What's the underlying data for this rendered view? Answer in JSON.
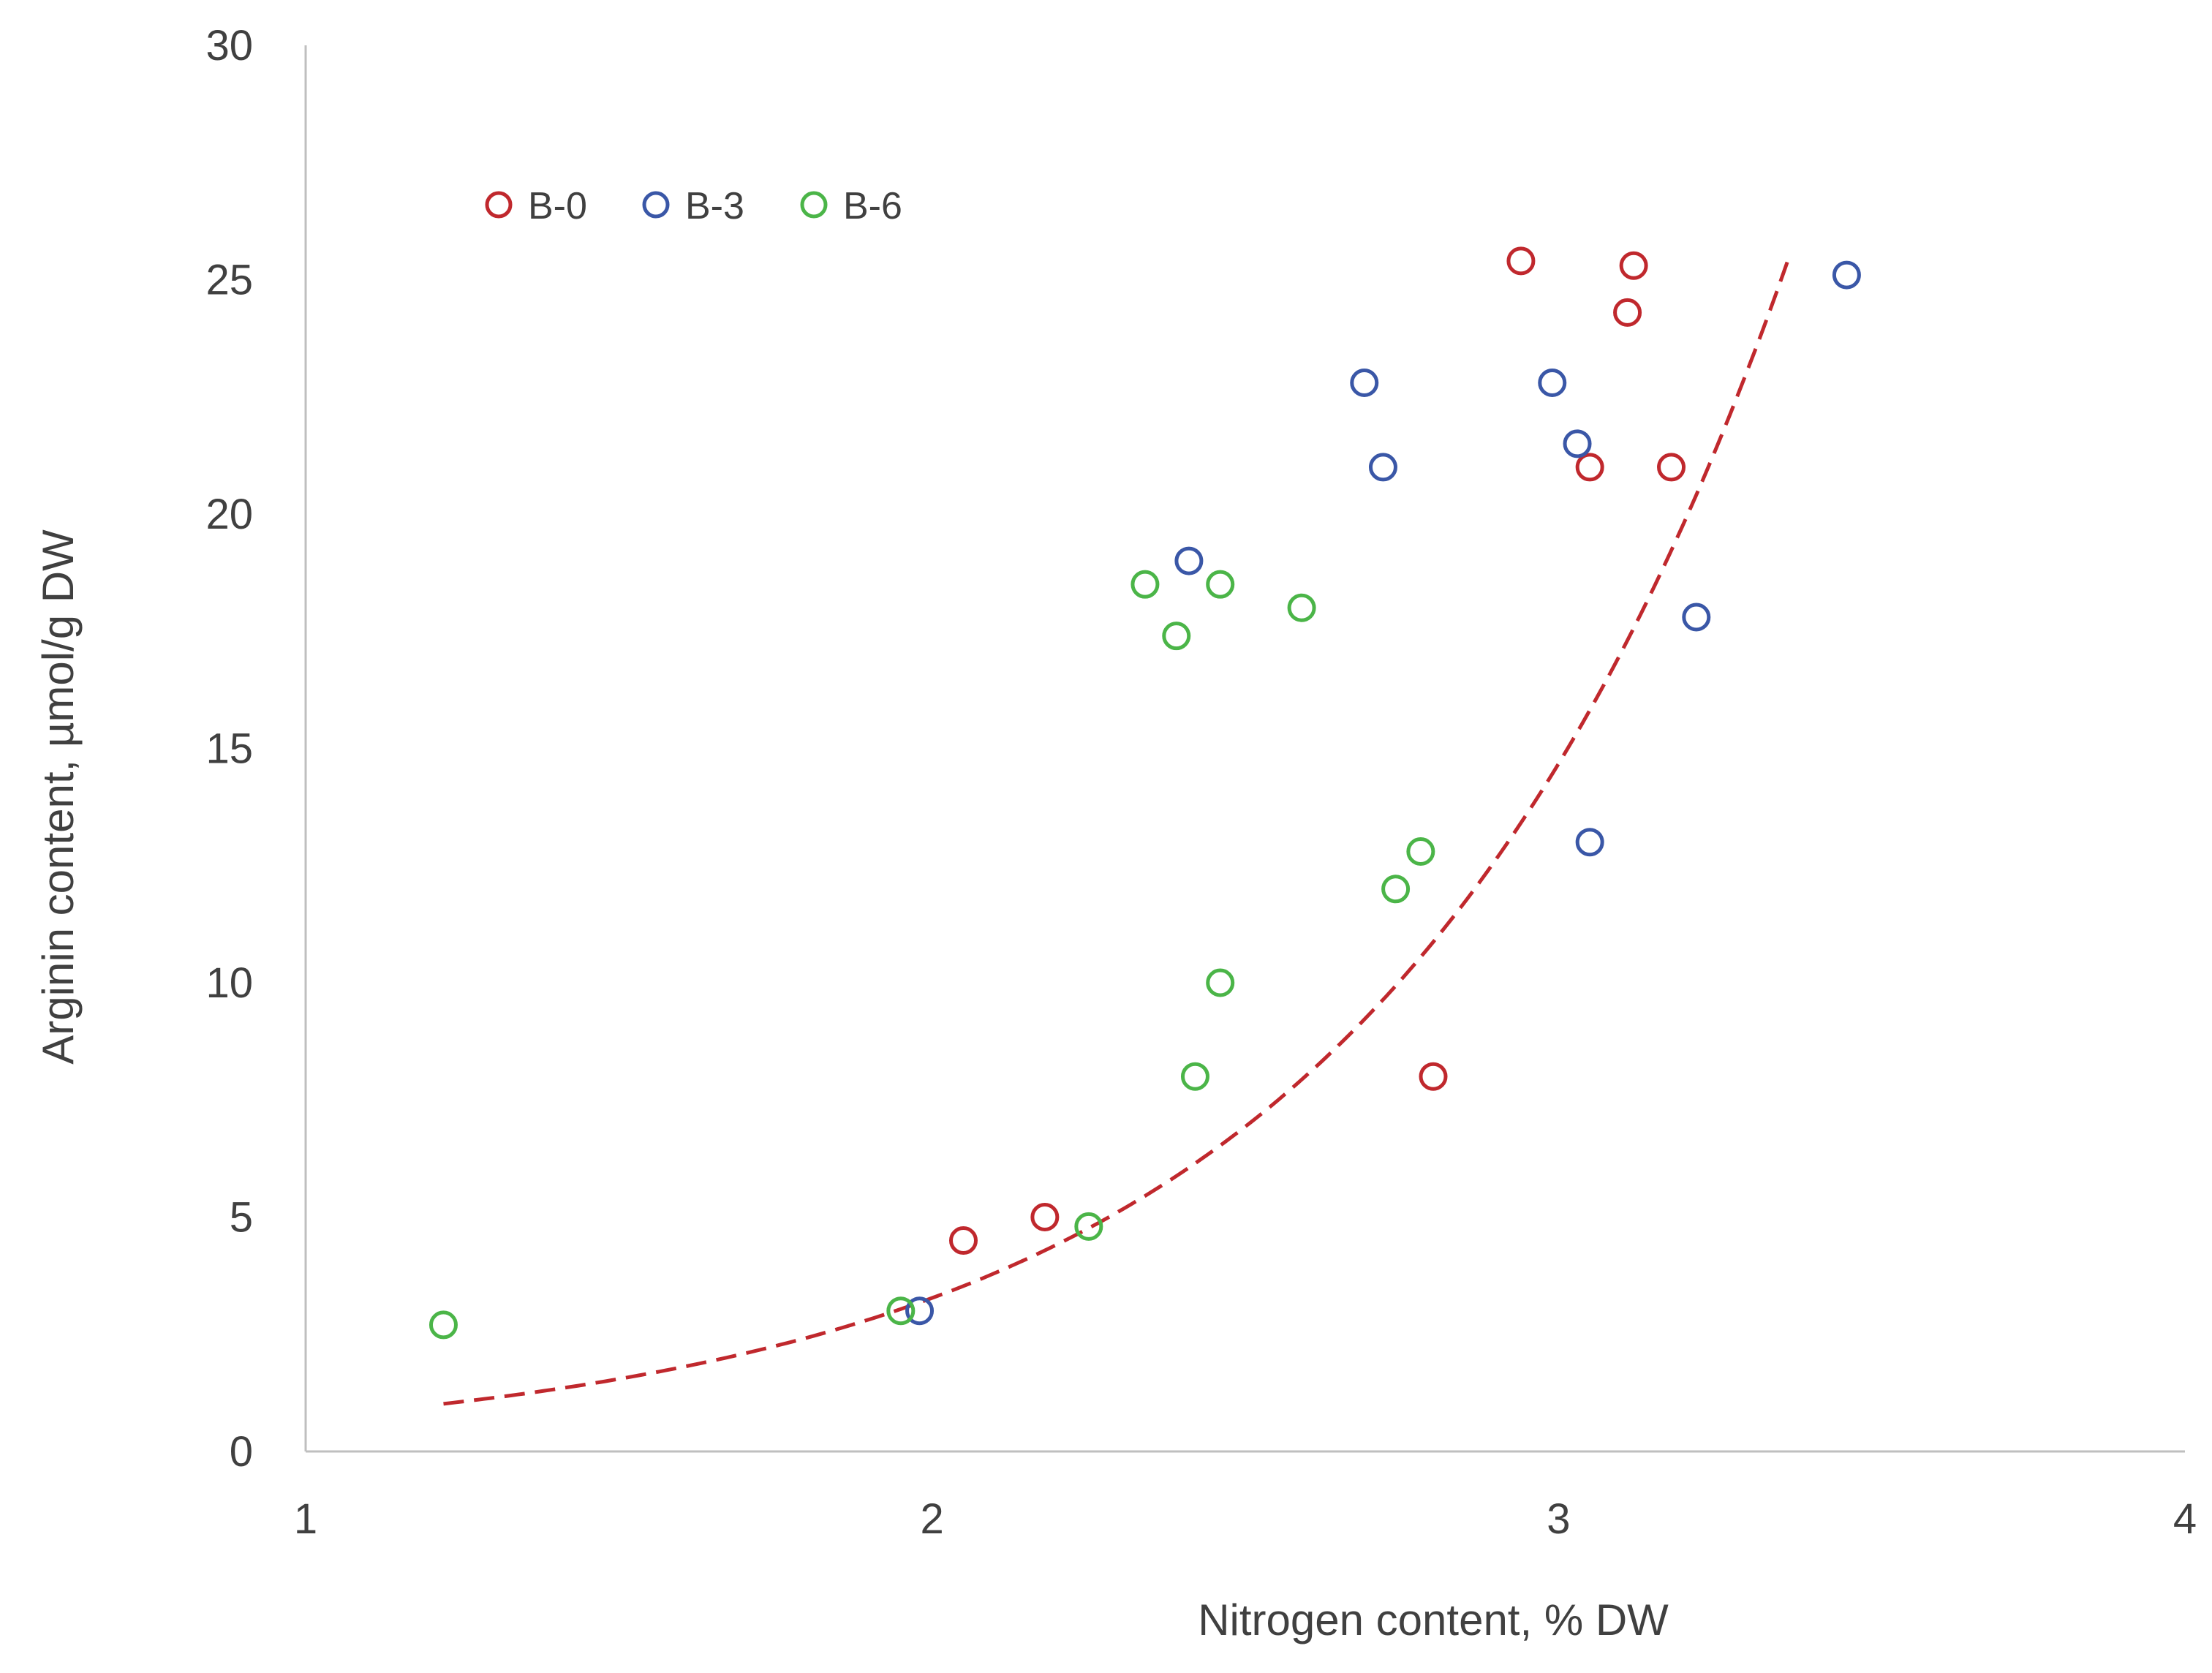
{
  "chart_data": {
    "type": "scatter",
    "title": "",
    "xlabel": "Nitrogen content, % DW",
    "ylabel": "Arginin content, µmol/g DW",
    "xlim": [
      1,
      4
    ],
    "ylim": [
      0,
      30
    ],
    "xticks": [
      1,
      2,
      3,
      4
    ],
    "yticks": [
      0,
      5,
      10,
      15,
      20,
      25,
      30
    ],
    "grid": false,
    "legend_position": "top-left",
    "series": [
      {
        "name": "B-0",
        "color": "#c0282d",
        "points": [
          {
            "x": 2.05,
            "y": 4.5
          },
          {
            "x": 2.18,
            "y": 5.0
          },
          {
            "x": 2.8,
            "y": 8.0
          },
          {
            "x": 2.94,
            "y": 25.4
          },
          {
            "x": 3.05,
            "y": 21.0
          },
          {
            "x": 3.11,
            "y": 24.3
          },
          {
            "x": 3.12,
            "y": 25.3
          },
          {
            "x": 3.18,
            "y": 21.0
          }
        ]
      },
      {
        "name": "B-3",
        "color": "#3a57a7",
        "points": [
          {
            "x": 1.98,
            "y": 3.0
          },
          {
            "x": 2.41,
            "y": 19.0
          },
          {
            "x": 2.69,
            "y": 22.8
          },
          {
            "x": 2.72,
            "y": 21.0
          },
          {
            "x": 2.99,
            "y": 22.8
          },
          {
            "x": 3.03,
            "y": 21.5
          },
          {
            "x": 3.05,
            "y": 13.0
          },
          {
            "x": 3.22,
            "y": 17.8
          },
          {
            "x": 3.46,
            "y": 25.1
          }
        ]
      },
      {
        "name": "B-6",
        "color": "#4bb548",
        "points": [
          {
            "x": 1.22,
            "y": 2.7
          },
          {
            "x": 1.95,
            "y": 3.0
          },
          {
            "x": 2.25,
            "y": 4.8
          },
          {
            "x": 2.34,
            "y": 18.5
          },
          {
            "x": 2.39,
            "y": 17.4
          },
          {
            "x": 2.42,
            "y": 8.0
          },
          {
            "x": 2.46,
            "y": 10.0
          },
          {
            "x": 2.46,
            "y": 18.5
          },
          {
            "x": 2.59,
            "y": 18.0
          },
          {
            "x": 2.74,
            "y": 12.0
          },
          {
            "x": 2.78,
            "y": 12.8
          }
        ]
      }
    ],
    "trendline": {
      "type": "exponential",
      "series": "B-0",
      "style": "dashed",
      "color": "#c0282d",
      "a": 0.163,
      "b": 1.5,
      "x_start": 1.22,
      "x_end": 3.37
    }
  }
}
